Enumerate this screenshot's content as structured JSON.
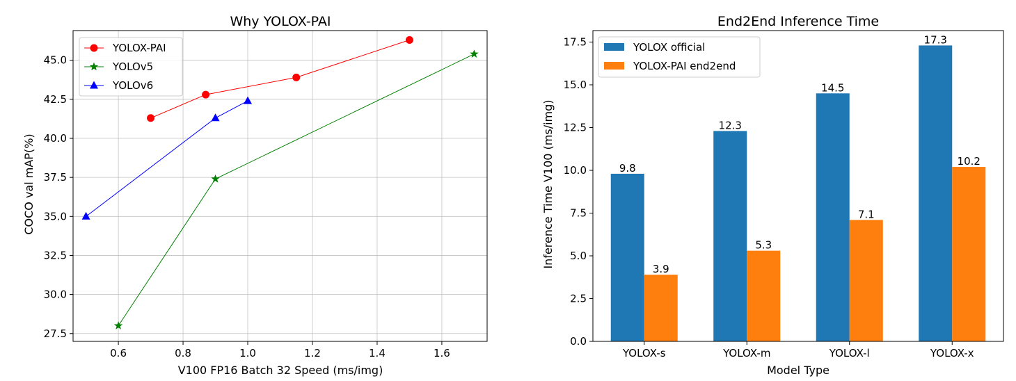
{
  "chart_data": [
    {
      "type": "line",
      "title": "Why YOLOX-PAI",
      "xlabel": "V100 FP16 Batch 32 Speed (ms/img)",
      "ylabel": "COCO val mAP(%)",
      "xlim": [
        0.46,
        1.74
      ],
      "ylim": [
        27.0,
        46.9
      ],
      "xticks": [
        0.6,
        0.8,
        1.0,
        1.2,
        1.4,
        1.6
      ],
      "xtick_labels": [
        "0.6",
        "0.8",
        "1.0",
        "1.2",
        "1.4",
        "1.6"
      ],
      "yticks": [
        27.5,
        30.0,
        32.5,
        35.0,
        37.5,
        40.0,
        42.5,
        45.0
      ],
      "ytick_labels": [
        "27.5",
        "30.0",
        "32.5",
        "35.0",
        "37.5",
        "40.0",
        "42.5",
        "45.0"
      ],
      "grid": true,
      "legend_position": "top-left",
      "series": [
        {
          "name": "YOLOX-PAI",
          "color": "#ff0000",
          "marker": "circle",
          "x": [
            0.7,
            0.87,
            1.15,
            1.5
          ],
          "y": [
            41.3,
            42.8,
            43.9,
            46.3
          ]
        },
        {
          "name": "YOLOv5",
          "color": "#008000",
          "marker": "star",
          "x": [
            0.6,
            0.9,
            1.7
          ],
          "y": [
            28.0,
            37.4,
            45.4
          ]
        },
        {
          "name": "YOLOv6",
          "color": "#0000ff",
          "marker": "triangle",
          "x": [
            0.5,
            0.9,
            1.0
          ],
          "y": [
            35.0,
            41.3,
            42.4
          ]
        }
      ]
    },
    {
      "type": "bar",
      "title": "End2End Inference Time",
      "xlabel": "Model Type",
      "ylabel": "Inference Time V100 (ms/img)",
      "categories": [
        "YOLOX-s",
        "YOLOX-m",
        "YOLOX-l",
        "YOLOX-x"
      ],
      "ylim": [
        0,
        18.17
      ],
      "yticks": [
        0,
        2.5,
        5,
        7.5,
        10,
        12.5,
        15,
        17.5
      ],
      "ytick_labels": [
        "0.0",
        "2.5",
        "5.0",
        "7.5",
        "10.0",
        "12.5",
        "15.0",
        "17.5"
      ],
      "grid": false,
      "legend_position": "top-left",
      "series": [
        {
          "name": "YOLOX official",
          "color": "#1f77b4",
          "values": [
            9.8,
            12.3,
            14.5,
            17.3
          ],
          "value_labels": [
            "9.8",
            "12.3",
            "14.5",
            "17.3"
          ]
        },
        {
          "name": "YOLOX-PAI end2end",
          "color": "#ff7f0e",
          "values": [
            3.9,
            5.3,
            7.1,
            10.2
          ],
          "value_labels": [
            "3.9",
            "5.3",
            "7.1",
            "10.2"
          ]
        }
      ]
    }
  ]
}
